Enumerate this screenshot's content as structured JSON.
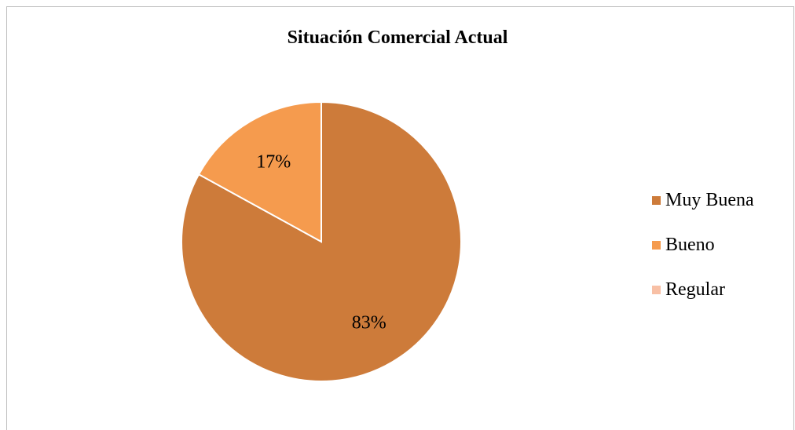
{
  "chart_data": {
    "type": "pie",
    "title": "Situación Comercial Actual",
    "categories": [
      "Muy Buena",
      "Bueno",
      "Regular"
    ],
    "values": [
      83,
      17,
      0
    ],
    "data_labels": [
      "83%",
      "17%",
      ""
    ],
    "colors": [
      "#cd7b3a",
      "#f59b4e",
      "#f8c0a5"
    ],
    "legend_position": "right"
  }
}
